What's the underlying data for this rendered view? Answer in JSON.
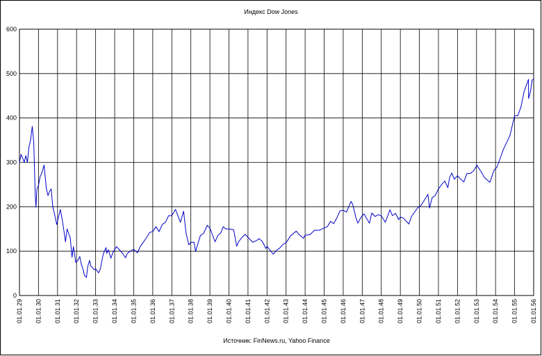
{
  "chart_data": {
    "type": "line",
    "title": "Индекс Dow Jones",
    "note": "Источник: FinNews.ru, Yahoo Finance",
    "color": "#0000c8",
    "grid": true,
    "ylim": [
      0,
      600
    ],
    "yticks": [
      0,
      100,
      200,
      300,
      400,
      500,
      600
    ],
    "xlim": [
      "01.01.29",
      "01.01.56"
    ],
    "xticks": [
      "01.01.29",
      "01.01.30",
      "01.01.31",
      "01.01.32",
      "01.01.33",
      "01.01.34",
      "01.01.35",
      "01.01.36",
      "01.01.37",
      "01.01.38",
      "01.01.39",
      "01.01.40",
      "01.01.41",
      "01.01.42",
      "01.01.43",
      "01.01.44",
      "01.01.45",
      "01.01.46",
      "01.01.47",
      "01.01.48",
      "01.01.49",
      "01.01.50",
      "01.01.51",
      "01.01.52",
      "01.01.53",
      "01.01.54",
      "01.01.55",
      "01.01.56"
    ],
    "x": [
      "01.01.29",
      "01.02.29",
      "01.03.29",
      "01.04.29",
      "01.05.29",
      "01.06.29",
      "01.07.29",
      "01.08.29",
      "03.09.29",
      "01.10.29",
      "29.10.29",
      "13.11.29",
      "01.12.29",
      "01.01.30",
      "01.02.30",
      "01.03.30",
      "17.04.30",
      "01.05.30",
      "01.06.30",
      "01.07.30",
      "01.08.30",
      "01.09.30",
      "01.10.30",
      "01.11.30",
      "16.12.30",
      "01.01.31",
      "24.02.31",
      "01.04.31",
      "02.06.31",
      "01.07.31",
      "01.08.31",
      "01.09.31",
      "05.10.31",
      "01.11.31",
      "17.12.31",
      "01.01.32",
      "01.02.32",
      "01.03.32",
      "01.04.32",
      "01.05.32",
      "01.06.32",
      "08.07.32",
      "01.08.32",
      "07.09.32",
      "01.10.32",
      "01.11.32",
      "01.12.32",
      "01.01.33",
      "27.02.33",
      "01.04.33",
      "01.05.33",
      "01.06.33",
      "18.07.33",
      "01.08.33",
      "01.09.33",
      "20.10.33",
      "01.12.33",
      "05.02.34",
      "01.04.34",
      "01.06.34",
      "26.07.34",
      "01.09.34",
      "01.11.34",
      "01.01.35",
      "14.03.35",
      "01.05.35",
      "01.07.35",
      "01.09.35",
      "01.11.35",
      "01.01.36",
      "01.03.36",
      "30.04.36",
      "01.07.36",
      "01.09.36",
      "01.11.36",
      "01.01.37",
      "10.03.37",
      "14.06.37",
      "14.08.37",
      "01.10.37",
      "24.11.37",
      "01.01.38",
      "01.03.38",
      "31.03.38",
      "01.05.38",
      "01.07.38",
      "01.09.38",
      "12.11.38",
      "01.01.39",
      "08.04.39",
      "01.06.39",
      "01.08.39",
      "12.09.39",
      "01.11.39",
      "01.01.40",
      "01.04.40",
      "28.05.40",
      "01.07.40",
      "01.09.40",
      "09.11.40",
      "01.01.41",
      "01.04.41",
      "01.06.41",
      "01.08.41",
      "01.10.41",
      "10.12.41",
      "01.01.42",
      "28.04.42",
      "01.07.42",
      "01.09.42",
      "01.11.42",
      "01.01.43",
      "01.04.43",
      "14.07.43",
      "01.09.43",
      "30.11.43",
      "01.01.44",
      "01.04.44",
      "01.07.44",
      "01.10.44",
      "01.01.45",
      "01.03.45",
      "01.05.45",
      "01.07.45",
      "01.09.45",
      "01.11.45",
      "01.01.46",
      "01.03.46",
      "29.05.46",
      "01.07.46",
      "01.09.46",
      "09.10.46",
      "01.12.46",
      "01.02.47",
      "17.05.47",
      "01.07.47",
      "01.09.47",
      "01.11.47",
      "01.01.48",
      "16.03.48",
      "15.06.48",
      "01.08.48",
      "01.10.48",
      "30.11.48",
      "01.01.49",
      "01.03.49",
      "13.06.49",
      "01.08.49",
      "01.10.49",
      "01.12.49",
      "01.02.50",
      "01.04.50",
      "12.06.50",
      "13.07.50",
      "01.09.50",
      "01.11.50",
      "01.01.51",
      "01.03.51",
      "01.05.51",
      "29.06.51",
      "01.08.51",
      "13.09.51",
      "01.11.51",
      "01.01.52",
      "01.03.52",
      "01.05.52",
      "01.07.52",
      "01.09.52",
      "01.11.52",
      "30.12.52",
      "05.01.53",
      "01.04.53",
      "01.06.53",
      "14.09.53",
      "01.12.53",
      "01.02.54",
      "01.04.54",
      "01.06.54",
      "01.08.54",
      "01.10.54",
      "01.12.54",
      "01.01.55",
      "01.03.55",
      "01.05.55",
      "01.07.55",
      "23.09.55",
      "26.09.55",
      "01.11.55",
      "01.12.55",
      "01.01.56"
    ],
    "values": [
      300,
      318,
      310,
      300,
      315,
      300,
      335,
      350,
      381,
      345,
      230,
      199,
      240,
      248,
      268,
      275,
      294,
      275,
      240,
      225,
      235,
      240,
      200,
      185,
      160,
      168,
      194,
      170,
      121,
      150,
      140,
      130,
      86,
      110,
      74,
      77,
      80,
      88,
      70,
      60,
      45,
      41,
      65,
      79,
      66,
      63,
      58,
      60,
      51,
      60,
      80,
      95,
      108,
      95,
      103,
      84,
      98,
      110,
      103,
      95,
      85,
      95,
      100,
      104,
      96,
      110,
      120,
      130,
      142,
      144,
      155,
      144,
      160,
      165,
      180,
      180,
      194,
      165,
      190,
      140,
      114,
      120,
      120,
      99,
      112,
      135,
      140,
      158,
      152,
      121,
      135,
      142,
      155,
      150,
      150,
      148,
      111,
      121,
      130,
      138,
      131,
      120,
      123,
      128,
      122,
      106,
      111,
      93,
      102,
      107,
      115,
      119,
      135,
      145,
      138,
      129,
      136,
      137,
      147,
      147,
      152,
      155,
      167,
      162,
      175,
      191,
      192,
      188,
      212,
      205,
      175,
      163,
      175,
      184,
      163,
      186,
      178,
      182,
      180,
      165,
      193,
      180,
      185,
      171,
      177,
      174,
      161,
      178,
      188,
      198,
      203,
      214,
      228,
      197,
      220,
      226,
      240,
      250,
      258,
      243,
      265,
      276,
      262,
      270,
      262,
      256,
      275,
      275,
      280,
      292,
      294,
      278,
      266,
      255,
      282,
      290,
      310,
      330,
      345,
      360,
      390,
      405,
      405,
      425,
      460,
      487,
      444,
      460,
      485,
      488
    ]
  }
}
